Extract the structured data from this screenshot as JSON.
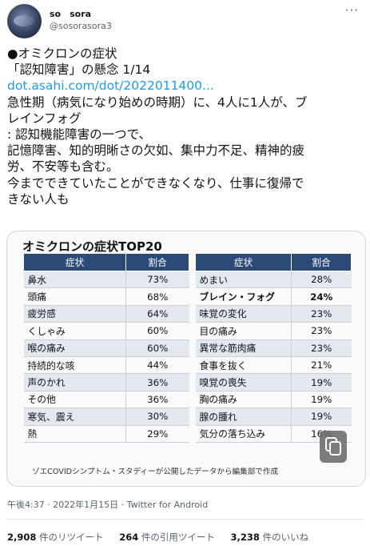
{
  "author": {
    "display_name": "so　sora",
    "handle": "@sosorasora3"
  },
  "more_label": "···",
  "tweet": {
    "line1": "●オミクロンの症状",
    "line2": "「認知障害」の懸念 1/14",
    "link": "dot.asahi.com/dot/2022011400...",
    "line4": "急性期（病気になり始めの時期）に、4人に1人が、ブ",
    "line5": "レインフォグ",
    "line6": ": 認知機能障害の一つで、",
    "line7": "記憶障害、知的明晰さの欠如、集中力不足、精神的疲",
    "line8": "労、不安等も含む。",
    "line9": "今までできていたことができなくなり、仕事に復帰で",
    "line10": "きない人も"
  },
  "media": {
    "title": "オミクロンの症状TOP20",
    "headers": {
      "symptom": "症状",
      "percent": "割合"
    },
    "left_rows": [
      {
        "name": "鼻水",
        "pct": "73%"
      },
      {
        "name": "頭痛",
        "pct": "68%"
      },
      {
        "name": "疲労感",
        "pct": "64%"
      },
      {
        "name": "くしゃみ",
        "pct": "60%"
      },
      {
        "name": "喉の痛み",
        "pct": "60%"
      },
      {
        "name": "持続的な咳",
        "pct": "44%"
      },
      {
        "name": "声のかれ",
        "pct": "36%"
      },
      {
        "name": "その他",
        "pct": "36%"
      },
      {
        "name": "寒気、震え",
        "pct": "30%"
      },
      {
        "name": "熱",
        "pct": "29%"
      }
    ],
    "right_rows": [
      {
        "name": "めまい",
        "pct": "28%"
      },
      {
        "name": "ブレイン・フォグ",
        "pct": "24%"
      },
      {
        "name": "味覚の変化",
        "pct": "23%"
      },
      {
        "name": "目の痛み",
        "pct": "23%"
      },
      {
        "name": "異常な筋肉痛",
        "pct": "23%"
      },
      {
        "name": "食事を抜く",
        "pct": "21%"
      },
      {
        "name": "嗅覚の喪失",
        "pct": "19%"
      },
      {
        "name": "胸の痛み",
        "pct": "19%"
      },
      {
        "name": "腺の腫れ",
        "pct": "19%"
      },
      {
        "name": "気分の落ち込み",
        "pct": "16%"
      }
    ],
    "footer": "ゾエCOVIDシンプトム・スタディーが公開したデータから編集部で作成"
  },
  "timestamp": "午後4:37 · 2022年1月15日 · Twitter for Android",
  "stats": {
    "retweets_count": "2,908",
    "retweets_label": " 件のリツイート",
    "quotes_count": "264",
    "quotes_label": " 件の引用ツイート",
    "likes_count": "3,238",
    "likes_label": " 件のいいね"
  }
}
